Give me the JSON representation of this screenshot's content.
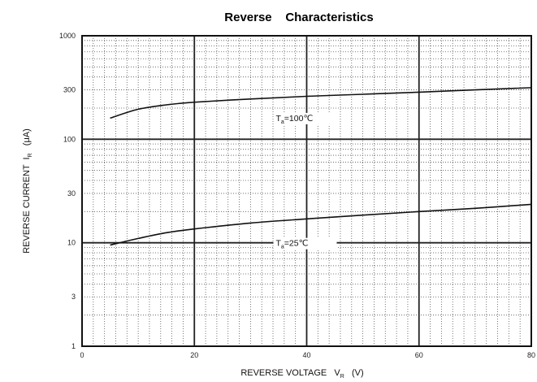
{
  "chart_data": {
    "type": "line",
    "title": "Reverse    Characteristics",
    "xlabel": {
      "main": "REVERSE VOLTAGE   V",
      "sub": "R",
      "unit": "(V)"
    },
    "ylabel": {
      "main": "REVERSE CURRENT  I",
      "sub": "R",
      "unit": "(μA)"
    },
    "xlim": [
      0,
      80
    ],
    "ylim": [
      1,
      1000
    ],
    "yscale": "log",
    "grid": true,
    "x_ticks": [
      "0",
      "20",
      "40",
      "60",
      "80"
    ],
    "y_ticks": [
      "1",
      "3",
      "10",
      "30",
      "100",
      "300",
      "1000"
    ],
    "series": [
      {
        "name": "T=100℃",
        "label": {
          "prefix": "T",
          "sub": "a",
          "text": "=100℃"
        },
        "x": [
          5,
          10,
          15,
          20,
          30,
          40,
          50,
          60,
          70,
          80
        ],
        "y": [
          160,
          195,
          215,
          228,
          245,
          260,
          272,
          285,
          300,
          315
        ]
      },
      {
        "name": "T=25℃",
        "label": {
          "prefix": "T",
          "sub": "a",
          "text": "=25℃"
        },
        "x": [
          5,
          10,
          15,
          20,
          30,
          40,
          50,
          60,
          70,
          80
        ],
        "y": [
          9.5,
          11,
          12.5,
          13.6,
          15.5,
          17,
          18.5,
          20,
          21.5,
          23.5
        ]
      }
    ]
  }
}
